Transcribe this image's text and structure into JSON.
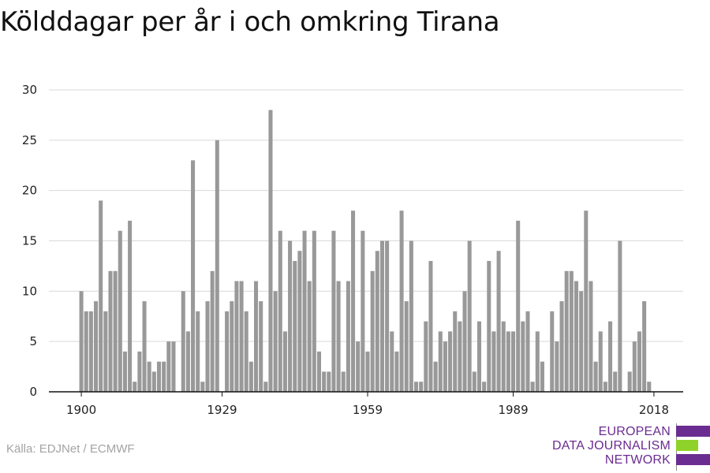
{
  "title": "Kölddagar per år i och omkring Tirana",
  "source": "Källa: EDJNet / ECMWF",
  "logo": {
    "lines": [
      "EUROPEAN",
      "DATA JOURNALISM",
      "NETWORK"
    ],
    "colors": [
      "#6b2c91",
      "#8fd22a",
      "#6b2c91"
    ]
  },
  "colors": {
    "bar": "#999999",
    "grid": "#d9d9d9",
    "axis": "#111111",
    "text": "#222222"
  },
  "chart_data": {
    "type": "bar",
    "title": "Kölddagar per år i och omkring Tirana",
    "xlabel": "",
    "ylabel": "",
    "xlim": [
      1900,
      2018
    ],
    "ylim": [
      0,
      30
    ],
    "yticks": [
      0,
      5,
      10,
      15,
      20,
      25,
      30
    ],
    "xticks": [
      1900,
      1929,
      1959,
      1989,
      2018
    ],
    "grid": true,
    "x": [
      1900,
      1901,
      1902,
      1903,
      1904,
      1905,
      1906,
      1907,
      1908,
      1909,
      1910,
      1911,
      1912,
      1913,
      1914,
      1915,
      1916,
      1917,
      1918,
      1919,
      1920,
      1921,
      1922,
      1923,
      1924,
      1925,
      1926,
      1927,
      1928,
      1929,
      1930,
      1931,
      1932,
      1933,
      1934,
      1935,
      1936,
      1937,
      1938,
      1939,
      1940,
      1941,
      1942,
      1943,
      1944,
      1945,
      1946,
      1947,
      1948,
      1949,
      1950,
      1951,
      1952,
      1953,
      1954,
      1955,
      1956,
      1957,
      1958,
      1959,
      1960,
      1961,
      1962,
      1963,
      1964,
      1965,
      1966,
      1967,
      1968,
      1969,
      1970,
      1971,
      1972,
      1973,
      1974,
      1975,
      1976,
      1977,
      1978,
      1979,
      1980,
      1981,
      1982,
      1983,
      1984,
      1985,
      1986,
      1987,
      1988,
      1989,
      1990,
      1991,
      1992,
      1993,
      1994,
      1995,
      1996,
      1997,
      1998,
      1999,
      2000,
      2001,
      2002,
      2003,
      2004,
      2005,
      2006,
      2007,
      2008,
      2009,
      2010,
      2011,
      2012,
      2013,
      2014,
      2015,
      2016,
      2017,
      2018
    ],
    "values": [
      10,
      8,
      8,
      9,
      19,
      8,
      12,
      12,
      16,
      4,
      17,
      1,
      4,
      9,
      3,
      2,
      3,
      3,
      5,
      5,
      0,
      10,
      6,
      23,
      8,
      1,
      9,
      12,
      25,
      0,
      8,
      9,
      11,
      11,
      8,
      3,
      11,
      9,
      1,
      28,
      10,
      16,
      6,
      15,
      13,
      14,
      16,
      11,
      16,
      4,
      2,
      2,
      16,
      11,
      2,
      11,
      18,
      5,
      16,
      4,
      12,
      14,
      15,
      15,
      6,
      4,
      18,
      9,
      15,
      1,
      1,
      7,
      13,
      3,
      6,
      5,
      6,
      8,
      7,
      10,
      15,
      2,
      7,
      1,
      13,
      6,
      14,
      7,
      6,
      6,
      17,
      7,
      8,
      1,
      6,
      3,
      0,
      8,
      5,
      9,
      12,
      12,
      11,
      10,
      18,
      11,
      3,
      6,
      1,
      7,
      2,
      15,
      0,
      2,
      5,
      6,
      9,
      1,
      0
    ]
  }
}
